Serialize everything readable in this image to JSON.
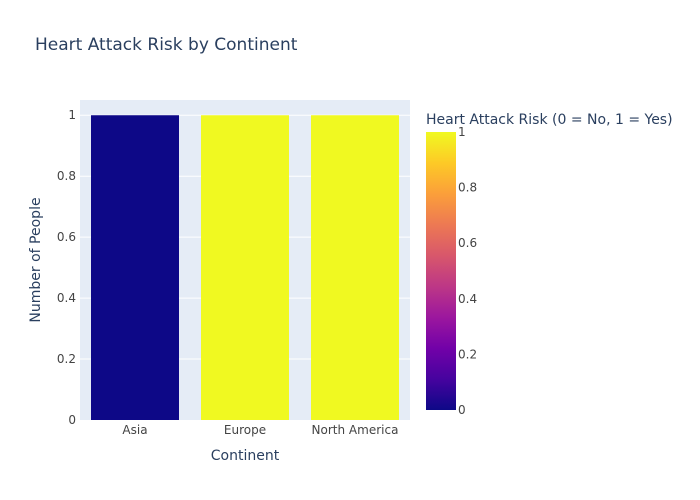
{
  "chart_data": {
    "type": "bar",
    "title": "Heart Attack Risk by Continent",
    "xlabel": "Continent",
    "ylabel": "Number of People",
    "categories": [
      "Asia",
      "Europe",
      "North America"
    ],
    "values": [
      1,
      1,
      1
    ],
    "color_values": [
      0,
      1,
      1
    ],
    "ylim": [
      0,
      1.05
    ],
    "yticks": [
      "0",
      "0.2",
      "0.4",
      "0.6",
      "0.8",
      "1"
    ],
    "grid": true,
    "colorbar": {
      "title": "Heart Attack Risk (0 = No, 1 = Yes)",
      "range": [
        0,
        1
      ],
      "ticks": [
        "0",
        "0.2",
        "0.4",
        "0.6",
        "0.8",
        "1"
      ],
      "placement": "right",
      "colorscale": [
        "#0d0887",
        "#46039f",
        "#7201a8",
        "#9c179e",
        "#bd3786",
        "#d8576b",
        "#ed7953",
        "#fb9f3a",
        "#fdca26",
        "#f0f921"
      ]
    },
    "colors": {
      "plot_background": "#e5ecf6",
      "grid": "#ffffff",
      "text": "#2a3f5f",
      "tick_text": "#444444"
    }
  }
}
